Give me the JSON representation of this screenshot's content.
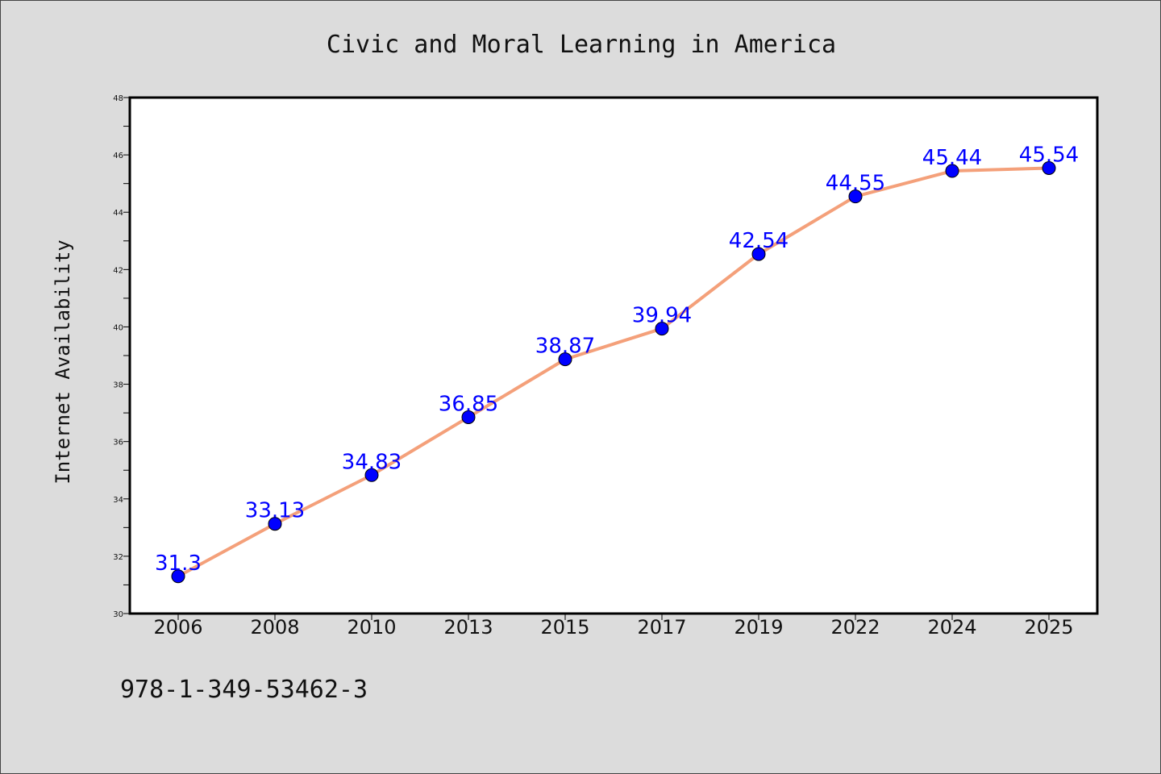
{
  "chart_data": {
    "type": "line",
    "title": "Civic and Moral Learning in America",
    "xlabel": "",
    "ylabel": "Internet Availability",
    "categories": [
      "2006",
      "2008",
      "2010",
      "2013",
      "2015",
      "2017",
      "2019",
      "2022",
      "2024",
      "2025"
    ],
    "series": [
      {
        "values": [
          31.3,
          33.13,
          34.83,
          36.85,
          38.87,
          39.94,
          42.54,
          44.55,
          45.44,
          45.54
        ],
        "labels": [
          "31.3",
          "33.13",
          "34.83",
          "36.85",
          "38.87",
          "39.94",
          "42.54",
          "44.55",
          "45.44",
          "45.54"
        ],
        "line_color": "#f4a07a",
        "marker_color": "#0000ff"
      }
    ],
    "ylim": [
      30,
      48
    ],
    "yticks": [
      30,
      32,
      34,
      36,
      38,
      40,
      42,
      44,
      46,
      48
    ],
    "grid": false,
    "legend": "none"
  },
  "footer": {
    "isbn": "978-1-349-53462-3"
  }
}
